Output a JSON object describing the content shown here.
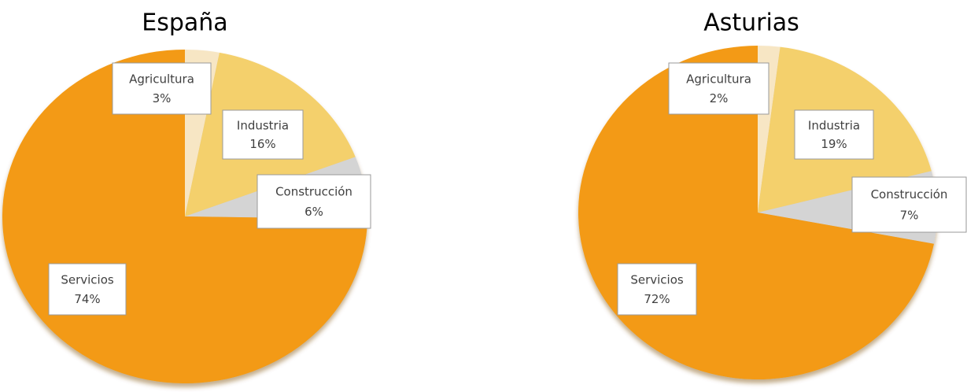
{
  "chart_data": [
    {
      "type": "pie",
      "title": "España",
      "categories": [
        "Agricultura",
        "Industria",
        "Construcción",
        "Servicios"
      ],
      "values": [
        3,
        16,
        6,
        74
      ],
      "value_labels": [
        "3%",
        "16%",
        "6%",
        "74%"
      ],
      "colors": [
        "#f7e6c4",
        "#f4d06c",
        "#d4d4d4",
        "#f39a12"
      ]
    },
    {
      "type": "pie",
      "title": "Asturias",
      "categories": [
        "Agricultura",
        "Industria",
        "Construcción",
        "Servicios"
      ],
      "values": [
        2,
        19,
        7,
        72
      ],
      "value_labels": [
        "2%",
        "19%",
        "7%",
        "72%"
      ],
      "colors": [
        "#f7e6c4",
        "#f4d06c",
        "#d4d4d4",
        "#f39a12"
      ]
    }
  ]
}
